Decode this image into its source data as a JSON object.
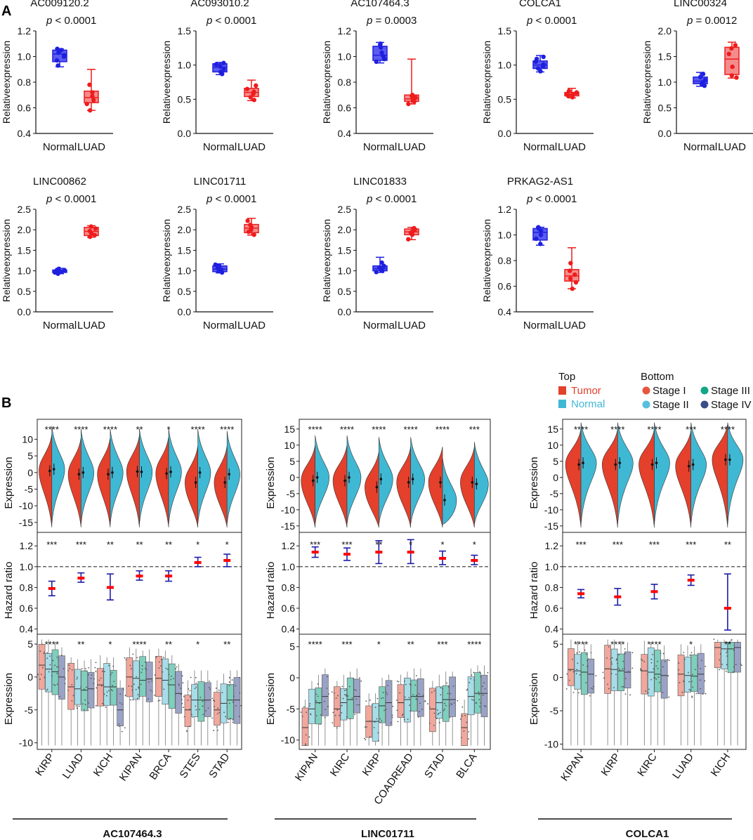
{
  "panel_labels": [
    "A",
    "B"
  ],
  "colors": {
    "normal": "#1f1fe0",
    "normal_fill": "#5b5bf0",
    "luad": "#ee1c1c",
    "luad_fill": "#f58c8c",
    "tumor": "#e4402b",
    "normal_b": "#3fb8d4",
    "stage1": "#e8553e",
    "stage2": "#56bfdd",
    "stage3": "#13a587",
    "stage4": "#3b4d86",
    "stage1_box": "#f2a79c",
    "stage2_box": "#a6dde9",
    "stage3_box": "#7fcfbe",
    "stage4_box": "#9aa3c6",
    "hr_bar": "#1c1ca8",
    "hr_point": "#ff0000"
  },
  "chart_data": [
    {
      "type": "box",
      "panel": "A",
      "ylabel": "Relativeexpression",
      "categories": [
        "Normal",
        "LUAD"
      ],
      "plots": [
        {
          "title": "AC009120.2",
          "pvalue": "< 0.0001",
          "ylim": [
            0.4,
            1.2
          ],
          "yticks": [
            "0.4",
            "0.6",
            "0.8",
            "1.0",
            "1.2"
          ],
          "normal": {
            "min": 0.92,
            "q1": 0.96,
            "median": 1.02,
            "q3": 1.05,
            "max": 1.06,
            "points": [
              0.93,
              0.97,
              1.0,
              1.03,
              1.05,
              1.06,
              1.01
            ]
          },
          "luad": {
            "min": 0.58,
            "q1": 0.64,
            "median": 0.68,
            "q3": 0.73,
            "max": 0.9,
            "points": [
              0.58,
              0.63,
              0.66,
              0.69,
              0.72,
              0.78
            ]
          }
        },
        {
          "title": "AC093010.2",
          "pvalue": "< 0.0001",
          "ylim": [
            0.0,
            1.5
          ],
          "yticks": [
            "0.0",
            "0.5",
            "1.0",
            "1.5"
          ],
          "normal": {
            "min": 0.86,
            "q1": 0.9,
            "median": 0.97,
            "q3": 1.02,
            "max": 1.04,
            "points": [
              0.87,
              0.9,
              0.94,
              0.98,
              1.01,
              1.03
            ]
          },
          "luad": {
            "min": 0.48,
            "q1": 0.54,
            "median": 0.6,
            "q3": 0.66,
            "max": 0.78,
            "points": [
              0.49,
              0.53,
              0.58,
              0.61,
              0.65,
              0.7
            ]
          }
        },
        {
          "title": "AC107464.3",
          "pvalue": "= 0.0003",
          "ylim": [
            0.4,
            1.2
          ],
          "yticks": [
            "0.4",
            "0.6",
            "0.8",
            "1.0",
            "1.2"
          ],
          "normal": {
            "min": 0.95,
            "q1": 0.97,
            "median": 1.01,
            "q3": 1.08,
            "max": 1.11,
            "points": [
              0.96,
              0.98,
              1.0,
              1.03,
              1.07,
              1.09,
              1.1
            ]
          },
          "luad": {
            "min": 0.63,
            "q1": 0.65,
            "median": 0.67,
            "q3": 0.7,
            "max": 0.98,
            "points": [
              0.63,
              0.65,
              0.66,
              0.68,
              0.69,
              0.7
            ]
          }
        },
        {
          "title": "COLCA1",
          "pvalue": "< 0.0001",
          "ylim": [
            0.0,
            1.5
          ],
          "yticks": [
            "0.0",
            "0.5",
            "1.0",
            "1.5"
          ],
          "normal": {
            "min": 0.9,
            "q1": 0.95,
            "median": 1.0,
            "q3": 1.06,
            "max": 1.14,
            "points": [
              0.91,
              0.95,
              0.98,
              1.01,
              1.05,
              1.09,
              1.12
            ]
          },
          "luad": {
            "min": 0.52,
            "q1": 0.55,
            "median": 0.57,
            "q3": 0.6,
            "max": 0.66,
            "points": [
              0.53,
              0.55,
              0.57,
              0.58,
              0.6,
              0.62
            ]
          }
        },
        {
          "title": "LINC00324",
          "pvalue": "= 0.0012",
          "ylim": [
            0.0,
            2.0
          ],
          "yticks": [
            "0.0",
            "0.5",
            "1.0",
            "1.5",
            "2.0"
          ],
          "normal": {
            "min": 0.92,
            "q1": 0.97,
            "median": 1.02,
            "q3": 1.1,
            "max": 1.19,
            "points": [
              0.93,
              0.97,
              1.0,
              1.04,
              1.1,
              1.16
            ]
          },
          "luad": {
            "min": 1.08,
            "q1": 1.15,
            "median": 1.45,
            "q3": 1.68,
            "max": 1.78,
            "points": [
              1.09,
              1.13,
              1.3,
              1.55,
              1.66,
              1.72
            ]
          }
        },
        {
          "title": "LINC00862",
          "pvalue": "< 0.0001",
          "ylim": [
            0.0,
            2.5
          ],
          "yticks": [
            "0.0",
            "0.5",
            "1.0",
            "1.5",
            "2.0",
            "2.5"
          ],
          "normal": {
            "min": 0.93,
            "q1": 0.96,
            "median": 0.99,
            "q3": 1.02,
            "max": 1.06,
            "points": [
              0.93,
              0.96,
              0.98,
              1.0,
              1.02,
              1.05
            ]
          },
          "luad": {
            "min": 1.82,
            "q1": 1.86,
            "median": 1.96,
            "q3": 2.06,
            "max": 2.1,
            "points": [
              1.83,
              1.87,
              1.92,
              1.97,
              2.03,
              2.08
            ]
          }
        },
        {
          "title": "LINC01711",
          "pvalue": "< 0.0001",
          "ylim": [
            0.0,
            2.5
          ],
          "yticks": [
            "0.0",
            "0.5",
            "1.0",
            "1.5",
            "2.0",
            "2.5"
          ],
          "normal": {
            "min": 0.95,
            "q1": 0.98,
            "median": 1.04,
            "q3": 1.12,
            "max": 1.17,
            "points": [
              0.96,
              0.99,
              1.03,
              1.07,
              1.12,
              1.15
            ]
          },
          "luad": {
            "min": 1.87,
            "q1": 1.93,
            "median": 2.04,
            "q3": 2.13,
            "max": 2.28,
            "points": [
              1.88,
              1.95,
              2.0,
              2.06,
              2.12,
              2.22
            ]
          }
        },
        {
          "title": "LINC01833",
          "pvalue": "< 0.0001",
          "ylim": [
            0.0,
            2.5
          ],
          "yticks": [
            "0.0",
            "0.5",
            "1.0",
            "1.5",
            "2.0",
            "2.5"
          ],
          "normal": {
            "min": 0.96,
            "q1": 1.0,
            "median": 1.05,
            "q3": 1.12,
            "max": 1.33,
            "points": [
              0.97,
              1.0,
              1.04,
              1.08,
              1.12,
              1.2
            ]
          },
          "luad": {
            "min": 1.76,
            "q1": 1.88,
            "median": 1.95,
            "q3": 2.02,
            "max": 2.06,
            "points": [
              1.77,
              1.88,
              1.93,
              1.97,
              2.01,
              2.04
            ]
          }
        },
        {
          "title": "PRKAG2-AS1",
          "pvalue": "< 0.0001",
          "ylim": [
            0.4,
            1.2
          ],
          "yticks": [
            "0.4",
            "0.6",
            "0.8",
            "1.0",
            "1.2"
          ],
          "normal": {
            "min": 0.92,
            "q1": 0.96,
            "median": 1.02,
            "q3": 1.05,
            "max": 1.06,
            "points": [
              0.93,
              0.97,
              1.0,
              1.03,
              1.05,
              1.06
            ]
          },
          "luad": {
            "min": 0.58,
            "q1": 0.64,
            "median": 0.68,
            "q3": 0.73,
            "max": 0.9,
            "points": [
              0.58,
              0.63,
              0.66,
              0.69,
              0.72,
              0.78
            ]
          }
        }
      ]
    },
    {
      "type": "composite",
      "panel": "B",
      "legend": {
        "top_title": "Top",
        "bottom_title": "Bottom",
        "top_items": [
          "Tumor",
          "Normal"
        ],
        "bottom_items": [
          "Stage I",
          "Stage II",
          "Stage III",
          "Stage IV"
        ]
      },
      "row_labels": {
        "violin": "Expression",
        "hazard": "Hazard ratio",
        "stage": "Expression"
      },
      "groups": [
        {
          "gene": "AC107464.3",
          "categories": [
            "KIRP",
            "LUAD",
            "KICH",
            "KIPAN",
            "BRCA",
            "STES",
            "STAD"
          ],
          "violin_ylim": [
            -18,
            16
          ],
          "violin_yticks": [
            "-15",
            "-10",
            "-5",
            "0",
            "5",
            "10"
          ],
          "violin_sig": [
            "****",
            "****",
            "****",
            "**",
            "*",
            "****",
            "****"
          ],
          "tumor_median": [
            0.5,
            -0.5,
            -0.5,
            0.3,
            -0.3,
            -3,
            -3
          ],
          "normal_median": [
            1,
            0,
            0,
            0.2,
            0.2,
            0,
            -0.5
          ],
          "hazard_ylim": [
            0.35,
            1.33
          ],
          "hazard_yticks": [
            "0.4",
            "0.6",
            "0.8",
            "1.0",
            "1.2"
          ],
          "hazard_sig": [
            "***",
            "***",
            "**",
            "**",
            "**",
            "*",
            "*"
          ],
          "hazard": [
            {
              "hr": 0.79,
              "lo": 0.72,
              "hi": 0.86
            },
            {
              "hr": 0.89,
              "lo": 0.85,
              "hi": 0.94
            },
            {
              "hr": 0.8,
              "lo": 0.68,
              "hi": 0.93
            },
            {
              "hr": 0.91,
              "lo": 0.87,
              "hi": 0.96
            },
            {
              "hr": 0.91,
              "lo": 0.86,
              "hi": 0.96
            },
            {
              "hr": 1.04,
              "lo": 1.0,
              "hi": 1.09
            },
            {
              "hr": 1.06,
              "lo": 1.0,
              "hi": 1.12
            }
          ],
          "stage_ylim": [
            -11,
            6.5
          ],
          "stage_yticks": [
            "-10",
            "-5",
            "0",
            "5"
          ],
          "stage_sig": [
            "****",
            "**",
            "*",
            "****",
            "**",
            "*",
            "**"
          ],
          "stage_medians": [
            [
              1.8,
              1.2,
              0.8,
              0
            ],
            [
              -1.5,
              -1.8,
              -2,
              -1.8
            ],
            [
              -1.2,
              -1.5,
              -1.5,
              -5
            ],
            [
              0,
              -0.2,
              -0.5,
              -0.3
            ],
            [
              -0.2,
              -0.5,
              -1.2,
              -2.5
            ],
            [
              -5,
              -3.5,
              -3.5,
              -3.5
            ],
            [
              -5,
              -4,
              -3.5,
              -3.5
            ]
          ]
        },
        {
          "gene": "LINC01711",
          "categories": [
            "KIPAN",
            "KIRC",
            "KIRP",
            "COADREAD",
            "STAD",
            "BLCA"
          ],
          "violin_ylim": [
            -17,
            18
          ],
          "violin_yticks": [
            "-15",
            "-10",
            "-5",
            "0",
            "5",
            "10",
            "15"
          ],
          "violin_sig": [
            "****",
            "****",
            "****",
            "****",
            "****",
            "***"
          ],
          "tumor_median": [
            -1,
            -1,
            -3,
            -1.5,
            -1.5,
            -1.5
          ],
          "normal_median": [
            0,
            0,
            -0.5,
            -0.5,
            -7,
            -2
          ],
          "hazard_ylim": [
            0.35,
            1.33
          ],
          "hazard_yticks": [
            "0.4",
            "0.6",
            "0.8",
            "1.0",
            "1.2"
          ],
          "hazard_sig": [
            "***",
            "***",
            "**",
            "*",
            "*",
            "*"
          ],
          "hazard": [
            {
              "hr": 1.14,
              "lo": 1.09,
              "hi": 1.19
            },
            {
              "hr": 1.12,
              "lo": 1.06,
              "hi": 1.18
            },
            {
              "hr": 1.14,
              "lo": 1.03,
              "hi": 1.25
            },
            {
              "hr": 1.14,
              "lo": 1.03,
              "hi": 1.26
            },
            {
              "hr": 1.08,
              "lo": 1.02,
              "hi": 1.15
            },
            {
              "hr": 1.06,
              "lo": 1.02,
              "hi": 1.11
            }
          ],
          "stage_ylim": [
            -11.5,
            7
          ],
          "stage_yticks": [
            "-10",
            "-5",
            "0",
            "5"
          ],
          "stage_sig": [
            "****",
            "***",
            "*",
            "**",
            "***",
            "****"
          ],
          "stage_medians": [
            [
              -8,
              -5,
              -4,
              -3
            ],
            [
              -5,
              -4,
              -3.5,
              -3
            ],
            [
              -7,
              -7,
              -4.5,
              -4
            ],
            [
              -4,
              -3.5,
              -3,
              -3
            ],
            [
              -5,
              -4,
              -3.5,
              -3.5
            ],
            [
              -8,
              -3,
              -2.5,
              -2.5
            ]
          ]
        },
        {
          "gene": "COLCA1",
          "categories": [
            "KIPAN",
            "KIRP",
            "KIRC",
            "LUAD",
            "KICH"
          ],
          "violin_ylim": [
            -17,
            18
          ],
          "violin_yticks": [
            "-15",
            "-10",
            "-5",
            "0",
            "5",
            "10",
            "15"
          ],
          "violin_sig": [
            "****",
            "****",
            "****",
            "***",
            "****"
          ],
          "tumor_median": [
            4,
            4,
            4,
            3.5,
            5.5
          ],
          "normal_median": [
            4.5,
            4.5,
            4.5,
            4,
            5.5
          ],
          "hazard_ylim": [
            0.35,
            1.33
          ],
          "hazard_yticks": [
            "0.4",
            "0.6",
            "0.8",
            "1.0",
            "1.2"
          ],
          "hazard_sig": [
            "***",
            "***",
            "***",
            "***",
            "**"
          ],
          "hazard": [
            {
              "hr": 0.74,
              "lo": 0.7,
              "hi": 0.78
            },
            {
              "hr": 0.71,
              "lo": 0.63,
              "hi": 0.79
            },
            {
              "hr": 0.76,
              "lo": 0.69,
              "hi": 0.83
            },
            {
              "hr": 0.87,
              "lo": 0.82,
              "hi": 0.92
            },
            {
              "hr": 0.6,
              "lo": 0.39,
              "hi": 0.93
            }
          ],
          "stage_ylim": [
            -10.8,
            6.5
          ],
          "stage_yticks": [
            "-10",
            "-5",
            "0",
            "5"
          ],
          "stage_sig": [
            "****",
            "****",
            "****",
            "*",
            "**"
          ],
          "stage_medians": [
            [
              1.2,
              1,
              0.8,
              0.5
            ],
            [
              1.3,
              1.2,
              1,
              0.8
            ],
            [
              1,
              0.8,
              0.5,
              0.3
            ],
            [
              0.5,
              0.3,
              0.2,
              0.5
            ],
            [
              4.5,
              4.3,
              4.3,
              4.5
            ]
          ]
        }
      ]
    }
  ]
}
